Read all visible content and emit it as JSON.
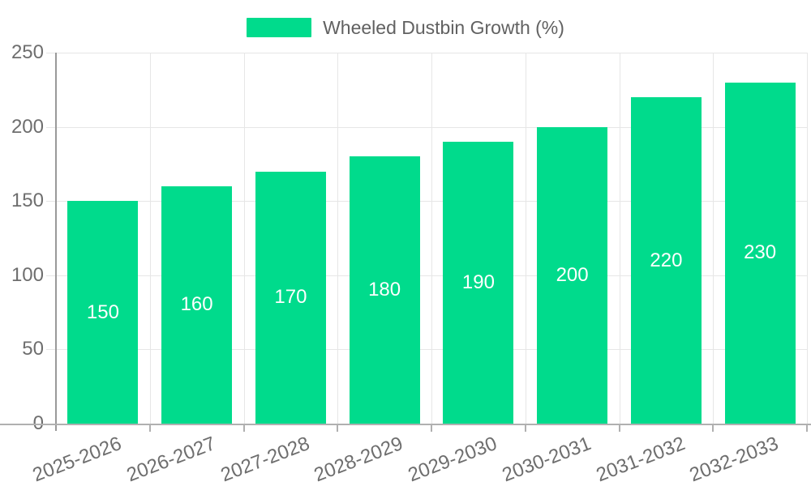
{
  "chart_data": {
    "type": "bar",
    "title": "Wheeled Dustbin Growth (%)",
    "legend": {
      "position": "top",
      "entries": [
        "Wheeled Dustbin Growth (%)"
      ]
    },
    "categories": [
      "2025-2026",
      "2026-2027",
      "2027-2028",
      "2028-2029",
      "2029-2030",
      "2030-2031",
      "2031-2032",
      "2032-2033"
    ],
    "values": [
      150,
      160,
      170,
      180,
      190,
      200,
      220,
      230
    ],
    "bar_labels": [
      "150",
      "160",
      "170",
      "180",
      "190",
      "200",
      "220",
      "230"
    ],
    "xlabel": "",
    "ylabel": "",
    "ylim": [
      0,
      250
    ],
    "yticks": [
      0,
      50,
      100,
      150,
      200,
      250
    ],
    "grid": true,
    "colors": {
      "bar": "#00DB8C",
      "bar_label": "#ffffff",
      "axis_text": "#6e6e6e",
      "legend_text": "#616161",
      "gridline": "#e6e6e6",
      "y_axis_line": "#999999",
      "x_baseline": "#b0b0b0",
      "background": "#ffffff"
    }
  }
}
